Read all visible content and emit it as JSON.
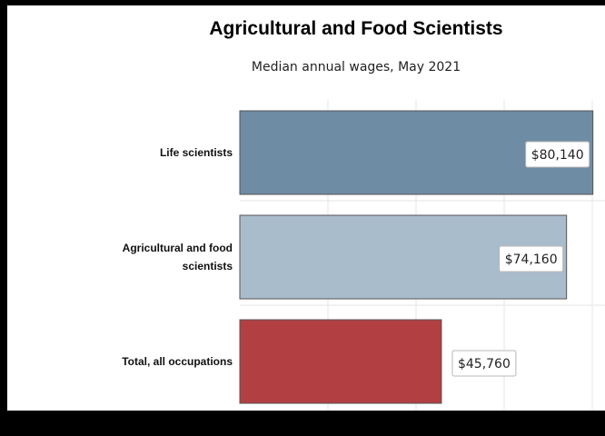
{
  "chart_data": {
    "type": "bar",
    "orientation": "horizontal",
    "title": "Agricultural and Food Scientists",
    "subtitle": "Median annual wages, May 2021",
    "categories": [
      [
        "Life scientists"
      ],
      [
        "Agricultural and food",
        "scientists"
      ],
      [
        "Total, all occupations"
      ]
    ],
    "values": [
      80140,
      74160,
      45760
    ],
    "data_labels": [
      "$80,140",
      "$74,160",
      "$45,760"
    ],
    "colors": [
      "#6e8ca3",
      "#a9bccb",
      "#b24042"
    ],
    "xlim": [
      0,
      100000
    ],
    "grid": true,
    "legend": "none"
  }
}
